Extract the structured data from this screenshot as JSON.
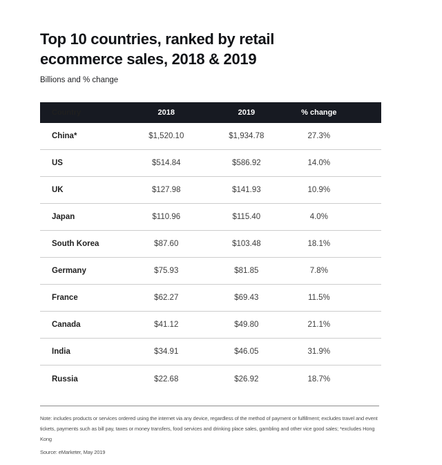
{
  "header": {
    "title": "Top 10 countries, ranked by retail ecommerce sales, 2018 & 2019",
    "subtitle": "Billions and % change"
  },
  "colors": {
    "header_bar": "#171a22",
    "header_text": "#ffffff",
    "divider": "#cccccc",
    "footer_rule": "#8c8c8c",
    "background": "#ffffff"
  },
  "table": {
    "columns": [
      "Country",
      "2018",
      "2019",
      "% change"
    ],
    "rows": [
      {
        "country": "China*",
        "y2018": "$1,520.10",
        "y2019": "$1,934.78",
        "change": "27.3%"
      },
      {
        "country": "US",
        "y2018": "$514.84",
        "y2019": "$586.92",
        "change": "14.0%"
      },
      {
        "country": "UK",
        "y2018": "$127.98",
        "y2019": "$141.93",
        "change": "10.9%"
      },
      {
        "country": "Japan",
        "y2018": "$110.96",
        "y2019": "$115.40",
        "change": "4.0%"
      },
      {
        "country": "South Korea",
        "y2018": "$87.60",
        "y2019": "$103.48",
        "change": "18.1%"
      },
      {
        "country": "Germany",
        "y2018": "$75.93",
        "y2019": "$81.85",
        "change": "7.8%"
      },
      {
        "country": "France",
        "y2018": "$62.27",
        "y2019": "$69.43",
        "change": "11.5%"
      },
      {
        "country": "Canada",
        "y2018": "$41.12",
        "y2019": "$49.80",
        "change": "21.1%"
      },
      {
        "country": "India",
        "y2018": "$34.91",
        "y2019": "$46.05",
        "change": "31.9%"
      },
      {
        "country": "Russia",
        "y2018": "$22.68",
        "y2019": "$26.92",
        "change": "18.7%"
      }
    ]
  },
  "footer": {
    "note": "Note: includes products or services ordered using the internet via any device, regardless of the method of payment or fulfillment; excludes travel and event tickets, payments such as bill pay, taxes or money transfers, food services and drinking place sales, gambling and other vice good sales; *excludes Hong Kong",
    "source": "Source: eMarketer, May 2019"
  },
  "chart_data": {
    "type": "table",
    "title": "Top 10 countries, ranked by retail ecommerce sales, 2018 & 2019",
    "subtitle": "Billions and % change",
    "units": "USD billions",
    "columns": [
      "Country",
      "2018",
      "2019",
      "% change"
    ],
    "rows": [
      [
        "China*",
        1520.1,
        1934.78,
        27.3
      ],
      [
        "US",
        514.84,
        586.92,
        14.0
      ],
      [
        "UK",
        127.98,
        141.93,
        10.9
      ],
      [
        "Japan",
        110.96,
        115.4,
        4.0
      ],
      [
        "South Korea",
        87.6,
        103.48,
        18.1
      ],
      [
        "Germany",
        75.93,
        81.85,
        7.8
      ],
      [
        "France",
        62.27,
        69.43,
        11.5
      ],
      [
        "Canada",
        41.12,
        49.8,
        21.1
      ],
      [
        "India",
        34.91,
        46.05,
        31.9
      ],
      [
        "Russia",
        22.68,
        26.92,
        18.7
      ]
    ],
    "note": "includes products or services ordered using the internet via any device, regardless of the method of payment or fulfillment; excludes travel and event tickets, payments such as bill pay, taxes or money transfers, food services and drinking place sales, gambling and other vice good sales; *excludes Hong Kong",
    "source": "eMarketer, May 2019"
  }
}
